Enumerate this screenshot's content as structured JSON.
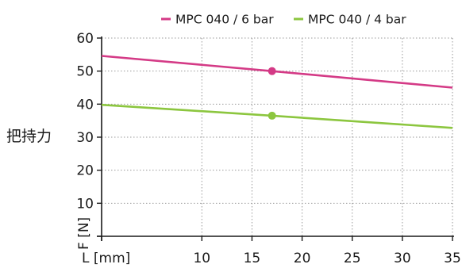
{
  "chart_data": {
    "type": "line",
    "title": "",
    "xlabel": "L [mm]",
    "ylabel": "F [N]",
    "annotation": "把持力",
    "xlim": [
      0,
      35
    ],
    "ylim": [
      0,
      60
    ],
    "x_ticks": [
      10,
      15,
      20,
      25,
      30,
      35
    ],
    "y_ticks": [
      10,
      20,
      30,
      40,
      50,
      60
    ],
    "grid": true,
    "grid_style": "dotted",
    "legend_position": "top",
    "series": [
      {
        "name": "MPC 040 / 6 bar",
        "color": "#d43a86",
        "x": [
          0,
          17,
          35
        ],
        "y": [
          54.6,
          50,
          45
        ],
        "marker": {
          "x": 17,
          "y": 50
        }
      },
      {
        "name": "MPC 040 / 4 bar",
        "color": "#8cc63f",
        "x": [
          0,
          17,
          35
        ],
        "y": [
          39.8,
          36.5,
          32.8
        ],
        "marker": {
          "x": 17,
          "y": 36.5
        }
      }
    ]
  }
}
